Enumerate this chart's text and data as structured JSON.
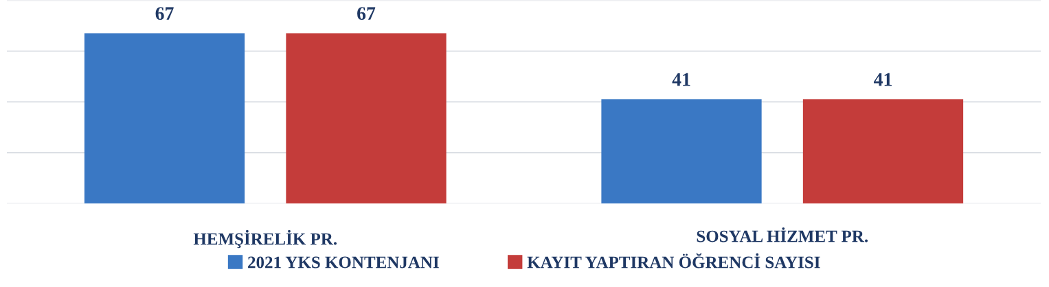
{
  "chart_data": {
    "type": "bar",
    "categories": [
      "HEMŞİRELİK PR.",
      "SOSYAL HİZMET PR."
    ],
    "series": [
      {
        "name": "2021 YKS KONTENJANI",
        "color": "#3a78c4",
        "values": [
          67,
          41
        ]
      },
      {
        "name": "KAYIT YAPTIRAN ÖĞRENCİ SAYISI",
        "color": "#c43c3a",
        "values": [
          67,
          41
        ]
      }
    ],
    "ylim": [
      0,
      80
    ],
    "yticks": [
      {
        "value": 0,
        "label": null
      },
      {
        "value": 20,
        "label": null
      },
      {
        "value": 40,
        "label": null
      },
      {
        "value": 60,
        "label": null
      },
      {
        "value": 80,
        "label": null
      }
    ],
    "tick_labels": "x",
    "grid": "y",
    "data_labels": true,
    "legend": "bottom"
  }
}
